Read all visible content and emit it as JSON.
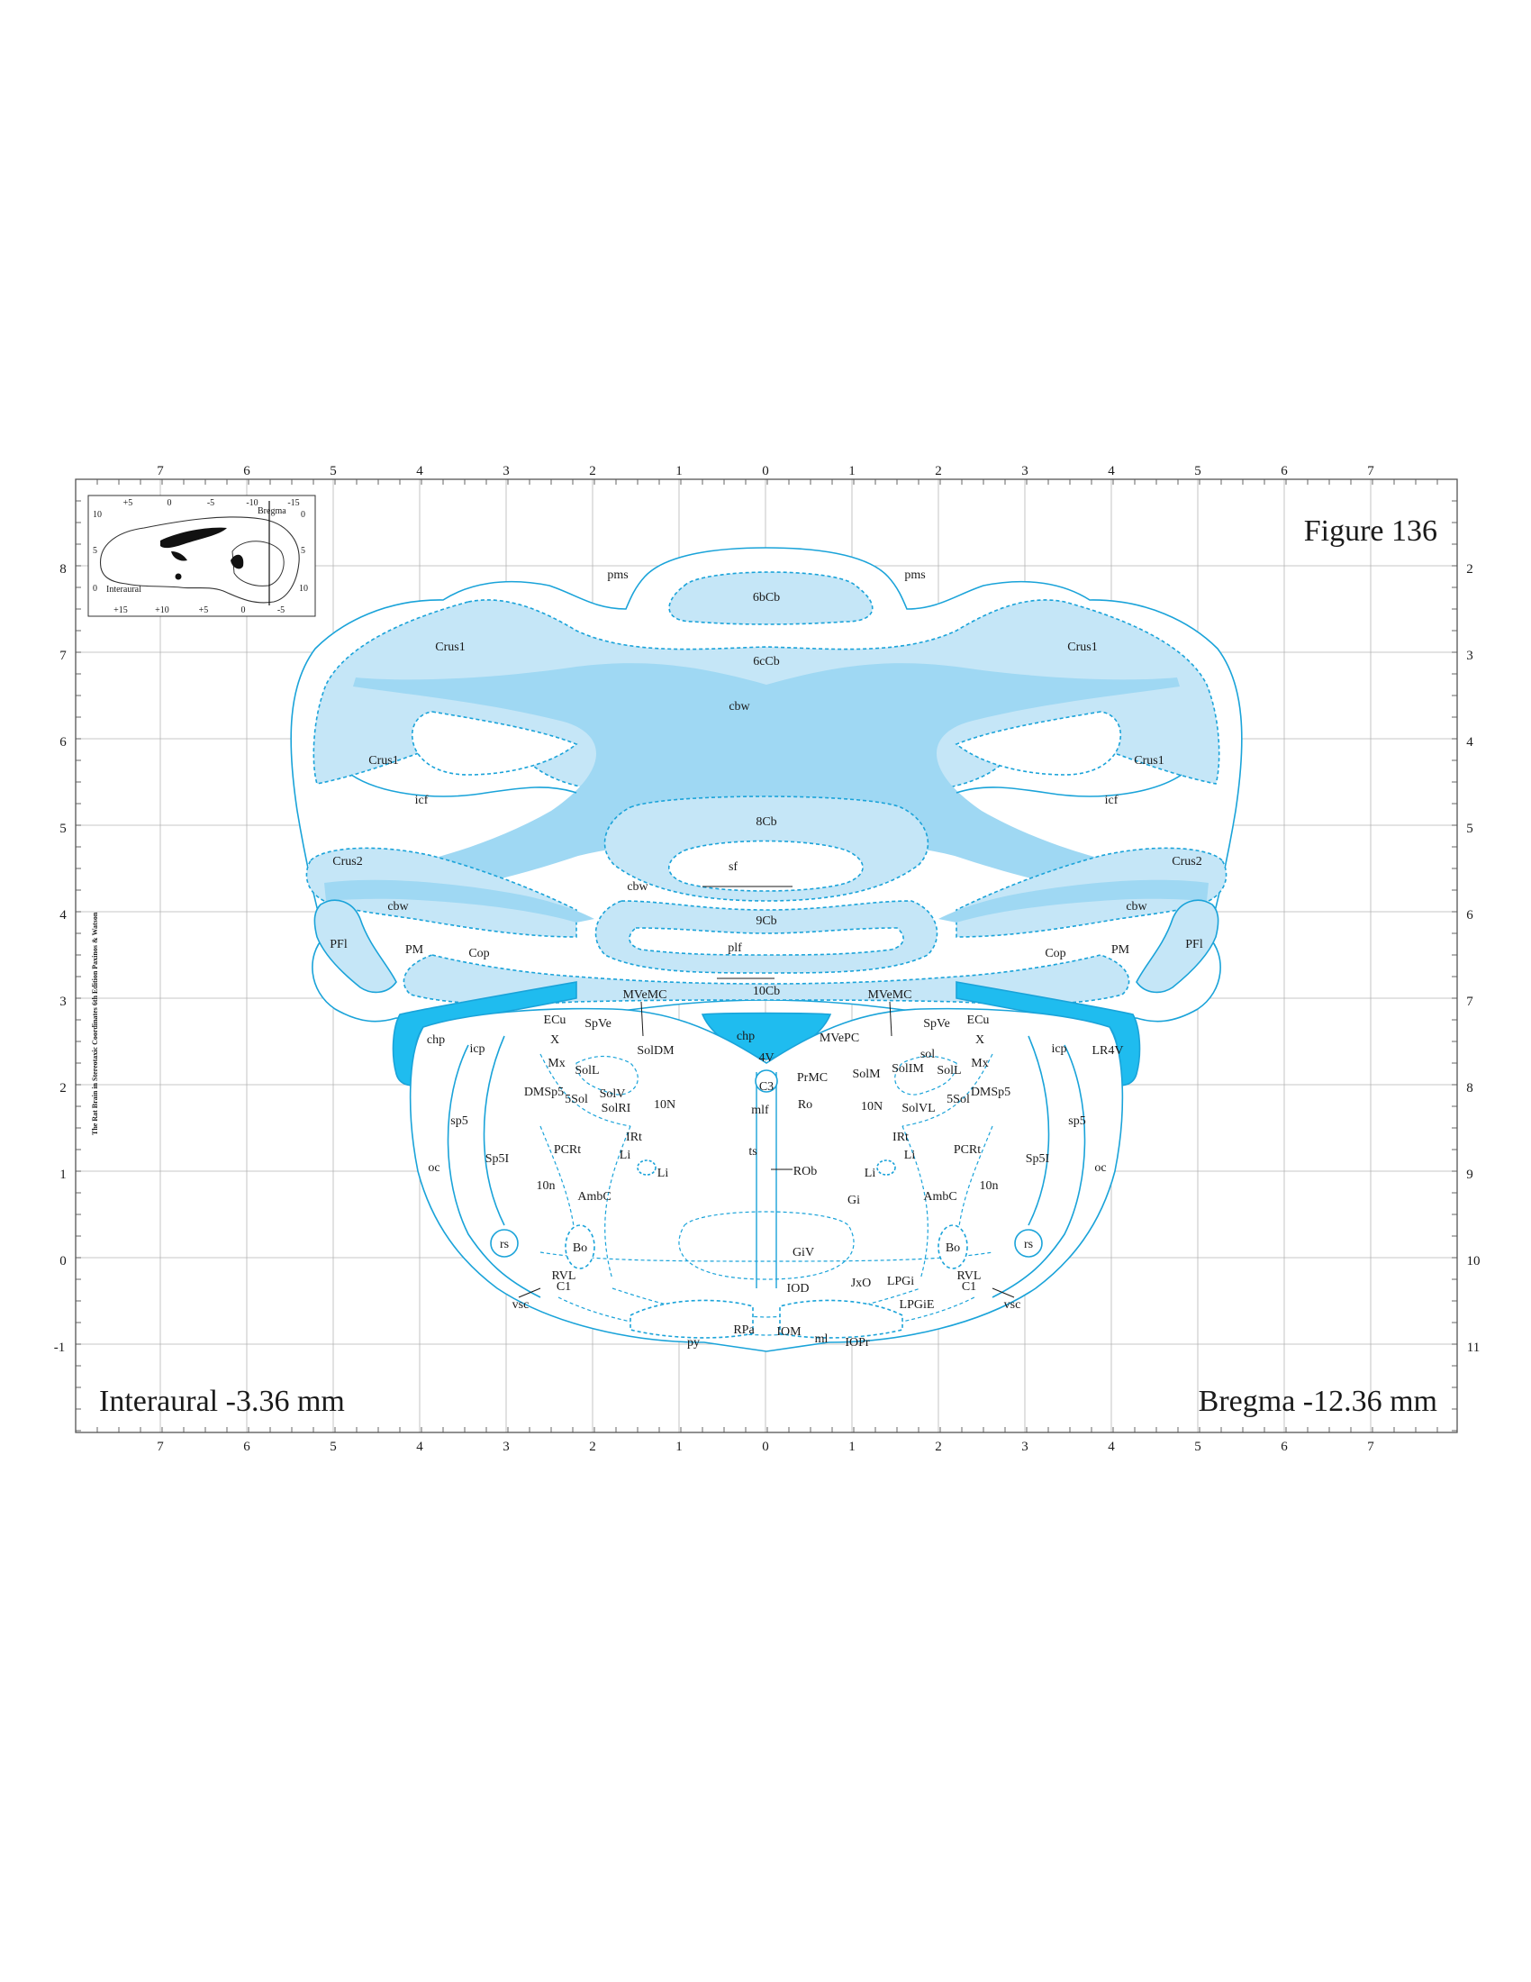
{
  "figure_title": "Figure 136",
  "caption_left": "Interaural -3.36 mm",
  "caption_right": "Bregma -12.36 mm",
  "side_credit": "The Rat Brain in Stereotaxic Coordinates 6th Edition  Paxinos & Watson",
  "axes": {
    "top_ticks": [
      "7",
      "6",
      "5",
      "4",
      "3",
      "2",
      "1",
      "0",
      "1",
      "2",
      "3",
      "4",
      "5",
      "6",
      "7"
    ],
    "bottom_ticks": [
      "7",
      "6",
      "5",
      "4",
      "3",
      "2",
      "1",
      "0",
      "1",
      "2",
      "3",
      "4",
      "5",
      "6",
      "7"
    ],
    "left_ticks": [
      "8",
      "7",
      "6",
      "5",
      "4",
      "3",
      "2",
      "1",
      "0",
      "-1"
    ],
    "right_ticks": [
      "2",
      "3",
      "4",
      "5",
      "6",
      "7",
      "8",
      "9",
      "10",
      "11"
    ]
  },
  "inset": {
    "top_ticks": [
      "+5",
      "0",
      "-5",
      "-10",
      "-15"
    ],
    "bottom_ticks": [
      "+15",
      "+10",
      "+5",
      "0",
      "-5"
    ],
    "left_ticks": [
      "10",
      "5",
      "0"
    ],
    "right_ticks": [
      "0",
      "5",
      "10"
    ],
    "bregma_label": "Bregma",
    "interaural_label": "Interaural"
  },
  "regions": {
    "pms_l": "pms",
    "pms_r": "pms",
    "c6bCb": "6bCb",
    "c6cCb": "6cCb",
    "cbw_top": "cbw",
    "crus1_ul": "Crus1",
    "crus1_ur": "Crus1",
    "crus1_ml": "Crus1",
    "crus1_mr": "Crus1",
    "icf_l": "icf",
    "icf_r": "icf",
    "c8Cb": "8Cb",
    "sf": "sf",
    "cbw_mid": "cbw",
    "crus2_l": "Crus2",
    "crus2_r": "Crus2",
    "cbw_l": "cbw",
    "cbw_r": "cbw",
    "c9Cb": "9Cb",
    "plf": "plf",
    "pfl_l": "PFl",
    "pfl_r": "PFl",
    "pm_l": "PM",
    "pm_r": "PM",
    "cop_l": "Cop",
    "cop_r": "Cop",
    "c10Cb": "10Cb",
    "mvemc_l": "MVeMC",
    "mvemc_r": "MVeMC",
    "chp_l": "chp",
    "chp_c": "chp",
    "lr4v": "LR4V",
    "v4": "4V",
    "ecu_l": "ECu",
    "ecu_r": "ECu",
    "spve_l": "SpVe",
    "spve_r": "SpVe",
    "x_l": "X",
    "x_r": "X",
    "icp_l": "icp",
    "icp_r": "icp",
    "mx_l": "Mx",
    "mx_r": "Mx",
    "soll_l": "SolL",
    "soll_r": "SolL",
    "soldm": "SolDM",
    "mvepc": "MVePC",
    "sol_r": "sol",
    "solim": "SolIM",
    "solm": "SolM",
    "dmsp5_l": "DMSp5",
    "dmsp5_r": "DMSp5",
    "ssol_l": "5Sol",
    "ssol_r": "5Sol",
    "solv": "SolV",
    "solri": "SolRI",
    "solvl": "SolVL",
    "n10_l": "10N",
    "n10_r": "10N",
    "c3": "C3",
    "prmc": "PrMC",
    "mlf": "mlf",
    "ro": "Ro",
    "sp5_l": "sp5",
    "sp5_r": "sp5",
    "irt_l": "IRt",
    "irt_r": "IRt",
    "pcrt_l": "PCRt",
    "pcrt_r": "PCRt",
    "oc_l": "oc",
    "oc_r": "oc",
    "sp5i_l": "Sp5I",
    "sp5i_r": "Sp5I",
    "li_l1": "Li",
    "li_l2": "Li",
    "li_r1": "Li",
    "li_r2": "Li",
    "ts": "ts",
    "rob": "ROb",
    "n10n_l": "10n",
    "n10n_r": "10n",
    "ambc_l": "AmbC",
    "ambc_r": "AmbC",
    "gi": "Gi",
    "rs_l": "rs",
    "rs_r": "rs",
    "bo_l": "Bo",
    "bo_r": "Bo",
    "giv": "GiV",
    "rvl_l": "RVL",
    "rvl_r": "RVL",
    "c1_l": "C1",
    "c1_r": "C1",
    "jxo": "JxO",
    "lpgi": "LPGi",
    "iod": "IOD",
    "lpgie": "LPGiE",
    "vsc_l": "vsc",
    "vsc_r": "vsc",
    "py": "py",
    "rpa": "RPa",
    "iom": "IOM",
    "ml": "ml",
    "iopr": "IOPr"
  },
  "colors": {
    "outline": "#1aa3d9",
    "light_fill": "#c5e6f7",
    "mid_fill": "#9fd8f3",
    "dark_fill": "#1fbcef",
    "grid": "#b5b5b5"
  }
}
